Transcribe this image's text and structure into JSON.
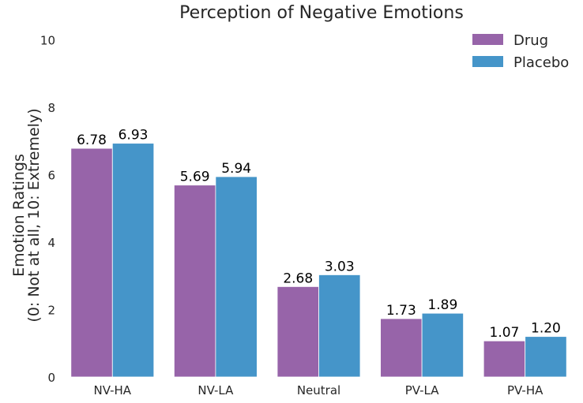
{
  "chart_data": {
    "type": "bar",
    "title": "Perception of Negative Emotions",
    "xlabel": "",
    "ylabel_lines": [
      "Emotion Ratings",
      "(0: Not at all, 10: Extremely)"
    ],
    "categories": [
      "NV-HA",
      "NV-LA",
      "Neutral",
      "PV-LA",
      "PV-HA"
    ],
    "ylim": [
      0,
      10.5
    ],
    "yticks": [
      0,
      2,
      4,
      6,
      8,
      10
    ],
    "grid": false,
    "legend_position": "top-right",
    "series": [
      {
        "name": "Drug",
        "color": "#9764a9",
        "values": [
          6.78,
          5.69,
          2.68,
          1.73,
          1.07
        ],
        "labels": [
          "6.78",
          "5.69",
          "2.68",
          "1.73",
          "1.07"
        ]
      },
      {
        "name": "Placebo",
        "color": "#4595c9",
        "values": [
          6.93,
          5.94,
          3.03,
          1.89,
          1.2
        ],
        "labels": [
          "6.93",
          "5.94",
          "3.03",
          "1.89",
          "1.20"
        ]
      }
    ]
  }
}
